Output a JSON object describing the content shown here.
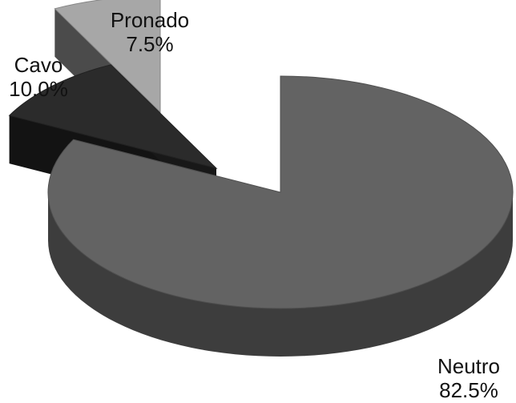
{
  "chart_data": {
    "type": "pie",
    "style": "3d-exploded",
    "slices": [
      {
        "label": "Neutro",
        "value": 82.5,
        "display": "82.5%",
        "color": "#636363"
      },
      {
        "label": "Cavo",
        "value": 10.0,
        "display": "10.0%",
        "color": "#2b2b2b"
      },
      {
        "label": "Pronado",
        "value": 7.5,
        "display": "7.5%",
        "color": "#a7a7a7"
      }
    ],
    "title": "",
    "legend": "none"
  }
}
